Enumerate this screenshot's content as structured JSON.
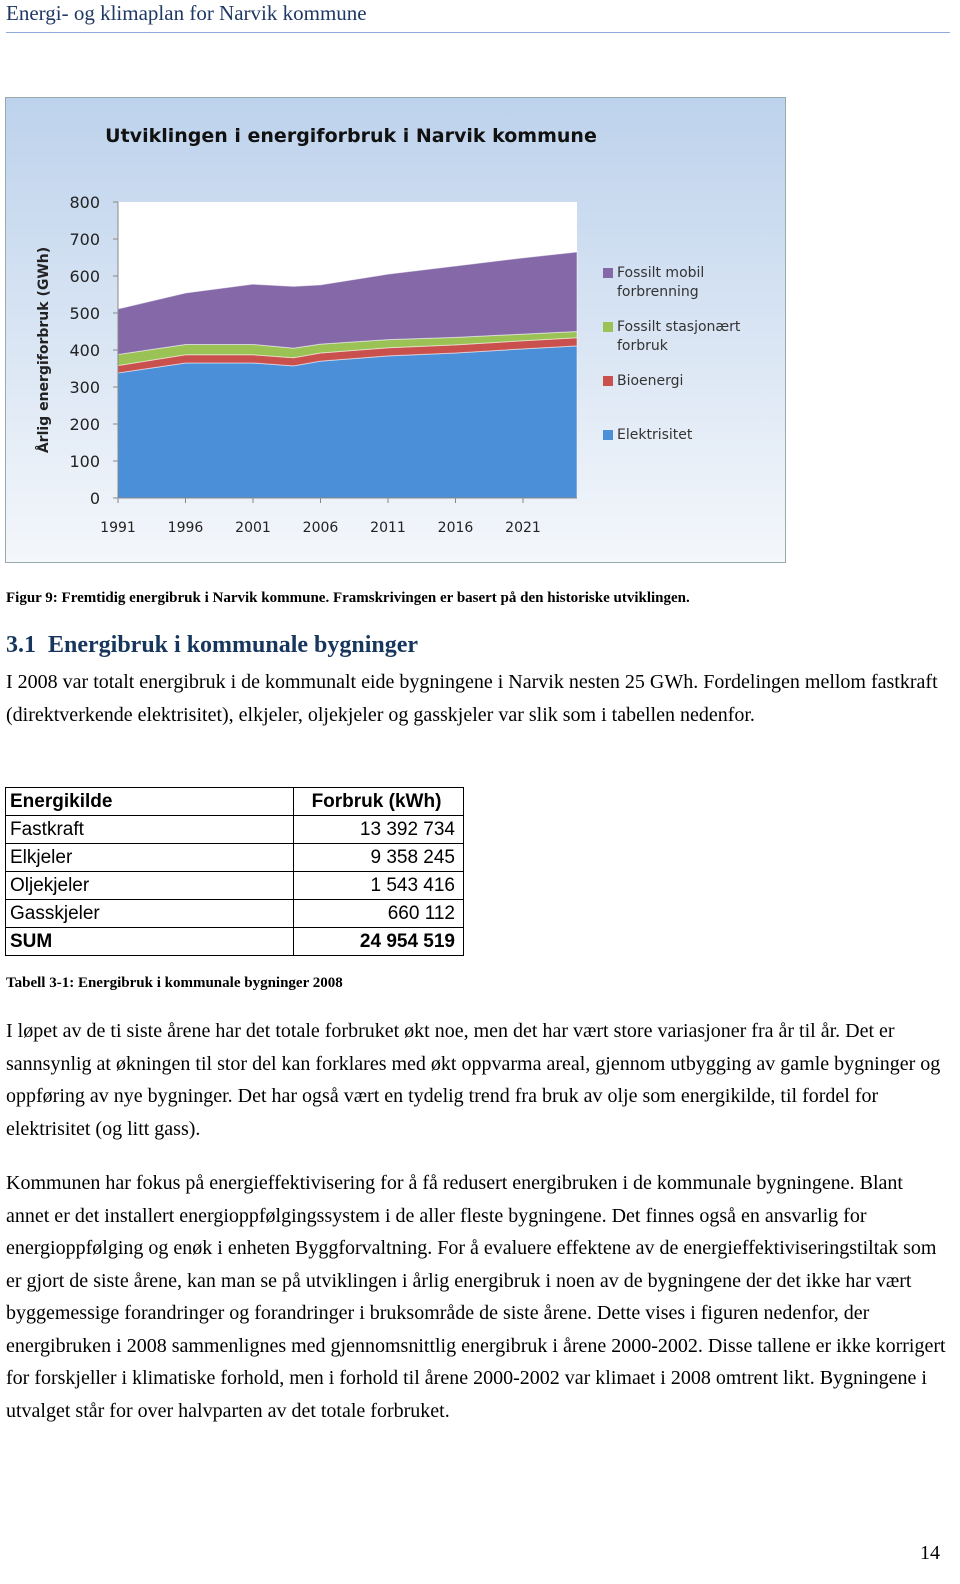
{
  "header": {
    "title": "Energi- og klimaplan for Narvik kommune"
  },
  "chart_data": {
    "type": "stacked-area",
    "title": "Utviklingen i energiforbruk i Narvik kommune",
    "y_label": "Årlig energiforbruk (GWh)",
    "x": [
      1991,
      1996,
      2001,
      2004,
      2006,
      2011,
      2016,
      2021,
      2025
    ],
    "xlim": [
      1991,
      2025
    ],
    "xticks": [
      1991,
      1996,
      2001,
      2006,
      2011,
      2016,
      2021
    ],
    "ylim": [
      0,
      800
    ],
    "yticks": [
      0,
      100,
      200,
      300,
      400,
      500,
      600,
      700,
      800
    ],
    "series": [
      {
        "name": "Elektrisitet",
        "color": "#4a8fd8",
        "values": [
          338,
          365,
          365,
          357,
          370,
          384,
          392,
          403,
          411
        ]
      },
      {
        "name": "Bioenergi",
        "color": "#c9504d",
        "values": [
          20,
          22,
          22,
          22,
          22,
          22,
          22,
          22,
          22
        ]
      },
      {
        "name": "Fossilt stasjonært forbruk",
        "color": "#9bc255",
        "values": [
          30,
          28,
          28,
          26,
          24,
          22,
          20,
          18,
          17
        ]
      },
      {
        "name": "Fossilt mobil forbrenning",
        "color": "#8468a8",
        "values": [
          123,
          139,
          163,
          167,
          160,
          177,
          193,
          206,
          215
        ]
      }
    ],
    "legend": "right"
  },
  "figure_caption": "Figur 9: Fremtidig energibruk i Narvik kommune. Framskrivingen er basert på den historiske utviklingen.",
  "section": {
    "number": "3.1",
    "title": "Energibruk i kommunale bygninger"
  },
  "paragraphs": [
    "I 2008 var totalt energibruk i de kommunalt eide bygningene i Narvik nesten 25 GWh. Fordelingen mellom fastkraft (direktverkende elektrisitet), elkjeler, oljekjeler og gasskjeler var slik som i tabellen nedenfor."
  ],
  "table": {
    "header": [
      "Energikilde",
      "Forbruk (kWh)"
    ],
    "rows": [
      [
        "Fastkraft",
        "13 392 734"
      ],
      [
        "Elkjeler",
        "9 358 245"
      ],
      [
        "Oljekjeler",
        "1 543 416"
      ],
      [
        "Gasskjeler",
        "660 112"
      ]
    ],
    "total": [
      "SUM",
      "24 954 519"
    ],
    "caption": "Tabell 3-1: Energibruk i kommunale bygninger 2008"
  },
  "paragraphs_after": [
    "I løpet av de ti siste årene har det totale forbruket økt noe, men det har vært store variasjoner fra år til år. Det er sannsynlig at økningen til stor del kan forklares med økt oppvarma areal, gjennom utbygging av gamle bygninger og oppføring av nye bygninger. Det har også vært en tydelig trend fra bruk av olje som energikilde, til fordel for elektrisitet (og litt gass).",
    "Kommunen har fokus på energieffektivisering for å få redusert energibruken i de kommunale bygningene. Blant annet er det installert energioppfølgingssystem i de aller fleste bygningene. Det finnes også en ansvarlig for energioppfølging og enøk i enheten Byggforvaltning. For å evaluere effektene av de energieffektiviseringstiltak som er gjort de siste årene, kan man se på utviklingen i årlig energibruk i noen av de bygningene der det ikke har vært byggemessige forandringer og forandringer i bruksområde de siste årene. Dette vises i figuren nedenfor, der energibruken i 2008 sammenlignes med gjennomsnittlig energibruk i årene 2000-2002. Disse tallene er ikke korrigert for forskjeller i klimatiske forhold, men i forhold til årene 2000-2002 var klimaet i 2008 omtrent likt. Bygningene i utvalget står for over halvparten av det totale forbruket."
  ],
  "page_number": "14"
}
